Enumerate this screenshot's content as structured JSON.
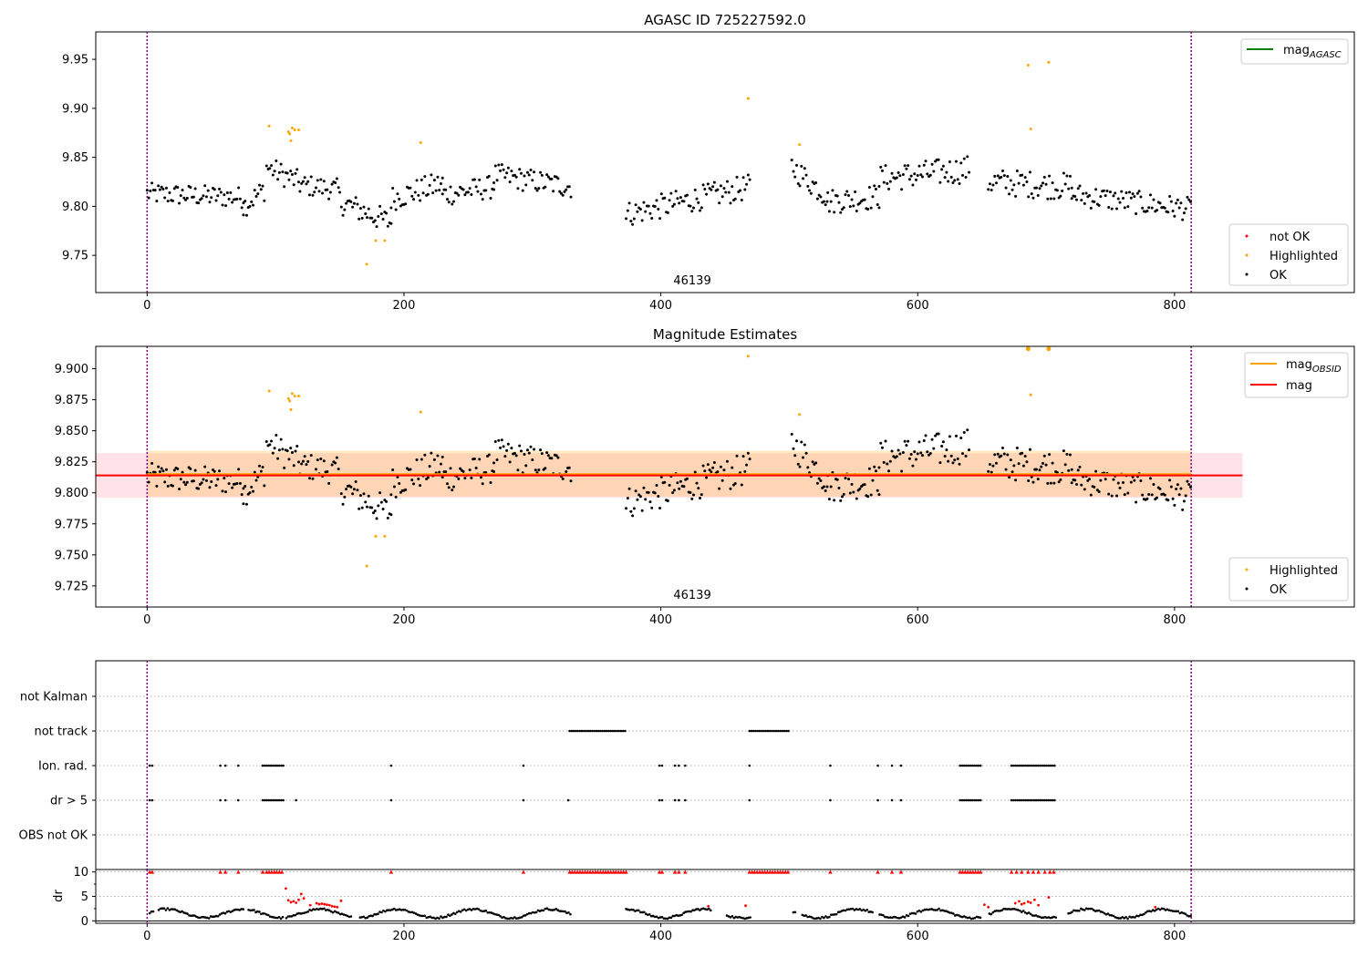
{
  "figure": {
    "title_top": "AGASC ID 725227592.0",
    "title_middle": "Magnitude Estimates",
    "obsid_label": "46139"
  },
  "colors": {
    "ok": "#000000",
    "highlighted": "#ffa500",
    "not_ok": "#ff0000",
    "mag_agasc": "#008000",
    "mag_obsid": "#ffa500",
    "mag": "#ff0000",
    "band_obsid": "#ffa500",
    "band_mag": "#ffc0cb",
    "obs_boundary": "#800080"
  },
  "chart_data": [
    {
      "type": "scatter",
      "panel": "top",
      "title": "AGASC ID 725227592.0",
      "xlim": [
        -40,
        940
      ],
      "ylim": [
        9.712,
        9.978
      ],
      "xticks": [
        0,
        200,
        400,
        600,
        800
      ],
      "yticks": [
        9.75,
        9.8,
        9.85,
        9.9,
        9.95
      ],
      "ytick_labels": [
        "9.75",
        "9.80",
        "9.85",
        "9.90",
        "9.95"
      ],
      "obs_boundaries": [
        0,
        813
      ],
      "annotation": {
        "text": "46139",
        "x": 406
      },
      "legend_lines": [
        {
          "label": "mag",
          "sub": "AGASC",
          "color": "#008000"
        }
      ],
      "legend_markers": [
        {
          "label": "not OK",
          "color": "#ff0000"
        },
        {
          "label": "Highlighted",
          "color": "#ffa500"
        },
        {
          "label": "OK",
          "color": "#000000"
        }
      ],
      "ok_segments": [
        {
          "x": [
            0,
            75
          ],
          "base": 9.813,
          "trend": -0.004,
          "amp": 0.011
        },
        {
          "x": [
            75,
            92
          ],
          "base": 9.8,
          "trend": 0.018,
          "amp": 0.012
        },
        {
          "x": [
            93,
            118
          ],
          "base": 9.84,
          "trend": -0.015,
          "amp": 0.012
        },
        {
          "x": [
            119,
            150
          ],
          "base": 9.822,
          "trend": -0.005,
          "amp": 0.011
        },
        {
          "x": [
            150,
            190
          ],
          "base": 9.805,
          "trend": -0.022,
          "amp": 0.013
        },
        {
          "x": [
            190,
            230
          ],
          "base": 9.808,
          "trend": 0.015,
          "amp": 0.013
        },
        {
          "x": [
            230,
            270
          ],
          "base": 9.812,
          "trend": 0.008,
          "amp": 0.012
        },
        {
          "x": [
            270,
            330
          ],
          "base": 9.832,
          "trend": -0.012,
          "amp": 0.012
        },
        {
          "x": [
            373,
            470
          ],
          "base": 9.792,
          "trend": 0.028,
          "amp": 0.013
        },
        {
          "x": [
            502,
            530
          ],
          "base": 9.84,
          "trend": -0.03,
          "amp": 0.013
        },
        {
          "x": [
            530,
            570
          ],
          "base": 9.805,
          "trend": 0.005,
          "amp": 0.013
        },
        {
          "x": [
            570,
            640
          ],
          "base": 9.828,
          "trend": 0.01,
          "amp": 0.014
        },
        {
          "x": [
            655,
            720
          ],
          "base": 9.825,
          "trend": -0.005,
          "amp": 0.014
        },
        {
          "x": [
            720,
            813
          ],
          "base": 9.812,
          "trend": -0.015,
          "amp": 0.012
        }
      ],
      "highlighted": [
        {
          "x": 95,
          "y": 9.882
        },
        {
          "x": 110,
          "y": 9.876
        },
        {
          "x": 111,
          "y": 9.874
        },
        {
          "x": 112,
          "y": 9.867
        },
        {
          "x": 113,
          "y": 9.88
        },
        {
          "x": 115,
          "y": 9.878
        },
        {
          "x": 118,
          "y": 9.878
        },
        {
          "x": 171,
          "y": 9.741
        },
        {
          "x": 178,
          "y": 9.765
        },
        {
          "x": 185,
          "y": 9.765
        },
        {
          "x": 213,
          "y": 9.865
        },
        {
          "x": 468,
          "y": 9.91
        },
        {
          "x": 508,
          "y": 9.863
        },
        {
          "x": 686,
          "y": 9.944
        },
        {
          "x": 688,
          "y": 9.879
        },
        {
          "x": 702,
          "y": 9.947
        }
      ],
      "not_ok": []
    },
    {
      "type": "scatter",
      "panel": "middle",
      "title": "Magnitude Estimates",
      "xlim": [
        -40,
        940
      ],
      "ylim": [
        9.708,
        9.918
      ],
      "xticks": [
        0,
        200,
        400,
        600,
        800
      ],
      "yticks": [
        9.725,
        9.75,
        9.775,
        9.8,
        9.825,
        9.85,
        9.875,
        9.9
      ],
      "ytick_labels": [
        "9.725",
        "9.750",
        "9.775",
        "9.800",
        "9.825",
        "9.850",
        "9.875",
        "9.900"
      ],
      "obs_boundaries": [
        0,
        813
      ],
      "annotation": {
        "text": "46139",
        "x": 406
      },
      "mag": 9.814,
      "mag_band": {
        "x": [
          -40,
          853
        ],
        "y": [
          9.796,
          9.832
        ]
      },
      "mag_obsid": 9.815,
      "mag_obsid_band": {
        "x": [
          0,
          813
        ],
        "y": [
          9.797,
          9.834
        ]
      },
      "legend_lines": [
        {
          "label": "mag",
          "sub": "OBSID",
          "color": "#ffa500"
        },
        {
          "label": "mag",
          "sub": "",
          "color": "#ff0000"
        }
      ],
      "legend_markers": [
        {
          "label": "Highlighted",
          "color": "#ffa500"
        },
        {
          "label": "OK",
          "color": "#000000"
        }
      ],
      "highlighted": [
        {
          "x": 95,
          "y": 9.882
        },
        {
          "x": 110,
          "y": 9.876
        },
        {
          "x": 111,
          "y": 9.874
        },
        {
          "x": 112,
          "y": 9.867
        },
        {
          "x": 113,
          "y": 9.88
        },
        {
          "x": 115,
          "y": 9.878
        },
        {
          "x": 118,
          "y": 9.878
        },
        {
          "x": 171,
          "y": 9.741
        },
        {
          "x": 178,
          "y": 9.765
        },
        {
          "x": 185,
          "y": 9.765
        },
        {
          "x": 213,
          "y": 9.865
        },
        {
          "x": 468,
          "y": 9.91
        },
        {
          "x": 508,
          "y": 9.863
        },
        {
          "x": 686,
          "y": 9.916
        },
        {
          "x": 688,
          "y": 9.879
        },
        {
          "x": 702,
          "y": 9.916
        }
      ]
    },
    {
      "type": "scatter",
      "panel": "flags",
      "xlim": [
        -40,
        940
      ],
      "obs_boundaries": [
        0,
        813
      ],
      "rows": [
        {
          "label": "not Kalman",
          "ranges": [],
          "points": []
        },
        {
          "label": "not track",
          "ranges": [
            [
              329,
              373
            ],
            [
              469,
              500
            ]
          ],
          "points": []
        },
        {
          "label": "Ion. rad.",
          "ranges": [
            [
              90,
              106
            ],
            [
              633,
              650
            ],
            [
              673,
              707
            ]
          ],
          "points": [
            2,
            4,
            57,
            61,
            71,
            190,
            293,
            399,
            401,
            411,
            414,
            419,
            469,
            532,
            569,
            580,
            587
          ]
        },
        {
          "label": "dr > 5",
          "ranges": [
            [
              90,
              106
            ],
            [
              633,
              650
            ],
            [
              673,
              707
            ]
          ],
          "points": [
            2,
            4,
            57,
            61,
            71,
            116,
            190,
            293,
            328,
            399,
            401,
            411,
            414,
            419,
            469,
            532,
            569,
            580,
            587
          ]
        },
        {
          "label": "OBS not OK",
          "ranges": [],
          "points": []
        }
      ]
    },
    {
      "type": "scatter",
      "panel": "dr",
      "ylabel": "dr",
      "xlim": [
        -40,
        940
      ],
      "ylim": [
        -0.5,
        10.5
      ],
      "yticks": [
        0,
        5,
        10
      ],
      "xticks": [
        0,
        200,
        400,
        600,
        800
      ],
      "obs_boundaries": [
        0,
        813
      ],
      "gaps": [
        [
          5,
          8
        ],
        [
          75,
          78
        ],
        [
          106,
          108
        ],
        [
          160,
          165
        ],
        [
          330,
          372
        ],
        [
          440,
          450
        ],
        [
          470,
          502
        ],
        [
          505,
          510
        ],
        [
          565,
          570
        ],
        [
          650,
          655
        ],
        [
          708,
          716
        ]
      ],
      "clipped_x": [
        2,
        4,
        57,
        61,
        71,
        90,
        93,
        95,
        97,
        99,
        101,
        103,
        105,
        190,
        293,
        329,
        331,
        333,
        335,
        337,
        339,
        341,
        343,
        345,
        347,
        349,
        351,
        353,
        355,
        357,
        359,
        361,
        363,
        365,
        367,
        369,
        371,
        373,
        399,
        401,
        411,
        414,
        419,
        469,
        471,
        473,
        475,
        477,
        479,
        481,
        483,
        485,
        487,
        489,
        491,
        493,
        495,
        497,
        499,
        532,
        569,
        580,
        587,
        633,
        635,
        637,
        639,
        641,
        643,
        645,
        647,
        649,
        673,
        677,
        681,
        686,
        690,
        694,
        699,
        703,
        706
      ],
      "red_points": [
        {
          "x": 108,
          "y": 6.6
        },
        {
          "x": 110,
          "y": 4.2
        },
        {
          "x": 112,
          "y": 3.8
        },
        {
          "x": 114,
          "y": 4.0
        },
        {
          "x": 116,
          "y": 3.7
        },
        {
          "x": 118,
          "y": 4.3
        },
        {
          "x": 120,
          "y": 5.5
        },
        {
          "x": 122,
          "y": 4.6
        },
        {
          "x": 127,
          "y": 3.2
        },
        {
          "x": 132,
          "y": 3.6
        },
        {
          "x": 134,
          "y": 3.4
        },
        {
          "x": 136,
          "y": 3.5
        },
        {
          "x": 138,
          "y": 3.4
        },
        {
          "x": 140,
          "y": 3.3
        },
        {
          "x": 142,
          "y": 3.2
        },
        {
          "x": 144,
          "y": 3.0
        },
        {
          "x": 146,
          "y": 2.9
        },
        {
          "x": 148,
          "y": 2.8
        },
        {
          "x": 151,
          "y": 4.1
        },
        {
          "x": 437,
          "y": 3.0
        },
        {
          "x": 466,
          "y": 3.1
        },
        {
          "x": 652,
          "y": 3.3
        },
        {
          "x": 655,
          "y": 2.8
        },
        {
          "x": 676,
          "y": 3.6
        },
        {
          "x": 679,
          "y": 4.0
        },
        {
          "x": 681,
          "y": 3.4
        },
        {
          "x": 683,
          "y": 3.6
        },
        {
          "x": 686,
          "y": 3.9
        },
        {
          "x": 688,
          "y": 3.7
        },
        {
          "x": 691,
          "y": 4.3
        },
        {
          "x": 694,
          "y": 3.2
        },
        {
          "x": 702,
          "y": 4.8
        },
        {
          "x": 785,
          "y": 2.8
        }
      ]
    }
  ]
}
